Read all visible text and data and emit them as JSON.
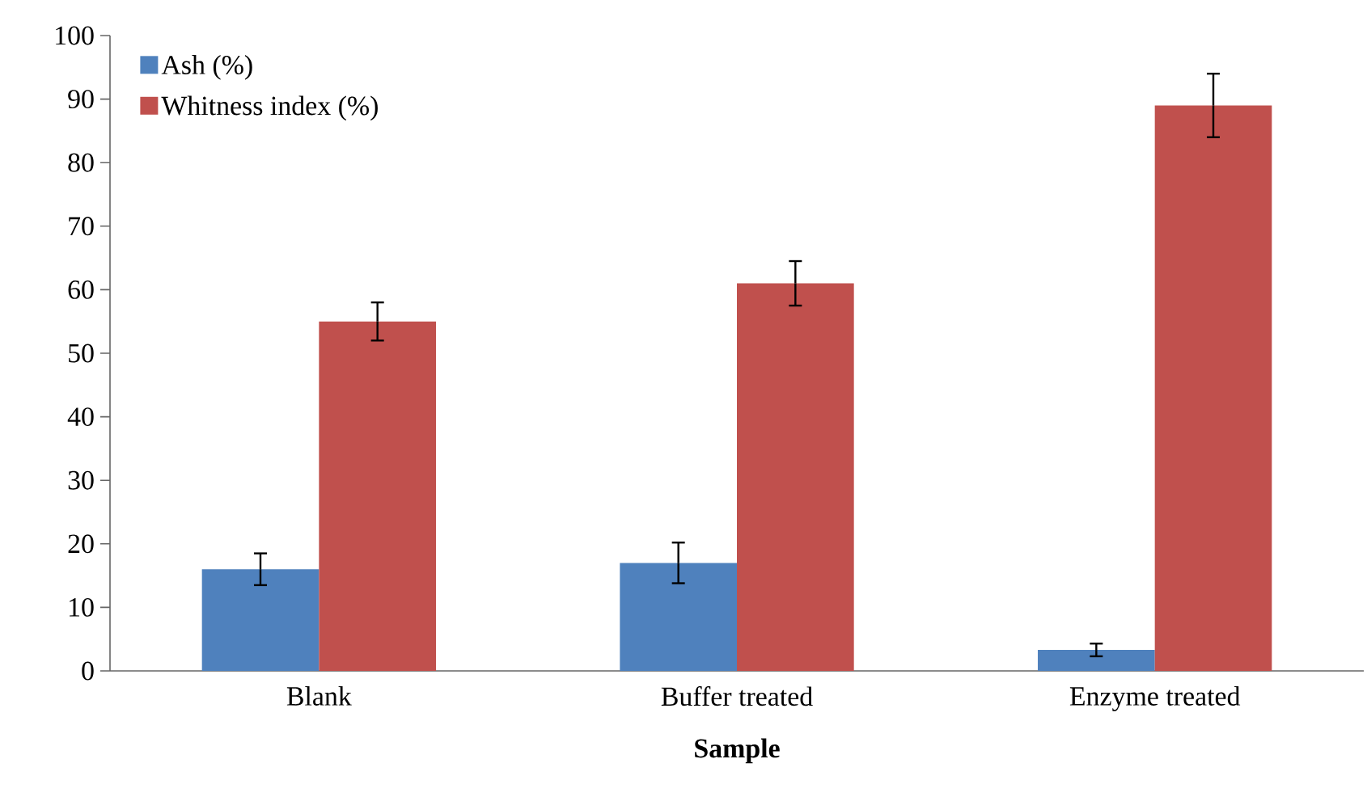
{
  "chart_data": {
    "type": "bar",
    "xlabel": "Sample",
    "categories": [
      "Blank",
      "Buffer treated",
      "Enzyme treated"
    ],
    "series": [
      {
        "name": "Ash (%)",
        "color": "#4f81bd",
        "values": [
          16,
          17,
          3.3
        ],
        "errors": [
          2.5,
          3.2,
          1
        ]
      },
      {
        "name": "Whitness index (%)",
        "color": "#c0504d",
        "values": [
          55,
          61,
          89
        ],
        "errors": [
          3,
          3.5,
          5
        ]
      }
    ],
    "ylim": [
      0,
      100
    ],
    "yticks": [
      0,
      10,
      20,
      30,
      40,
      50,
      60,
      70,
      80,
      90,
      100
    ],
    "grid": false,
    "legend": "top left"
  }
}
